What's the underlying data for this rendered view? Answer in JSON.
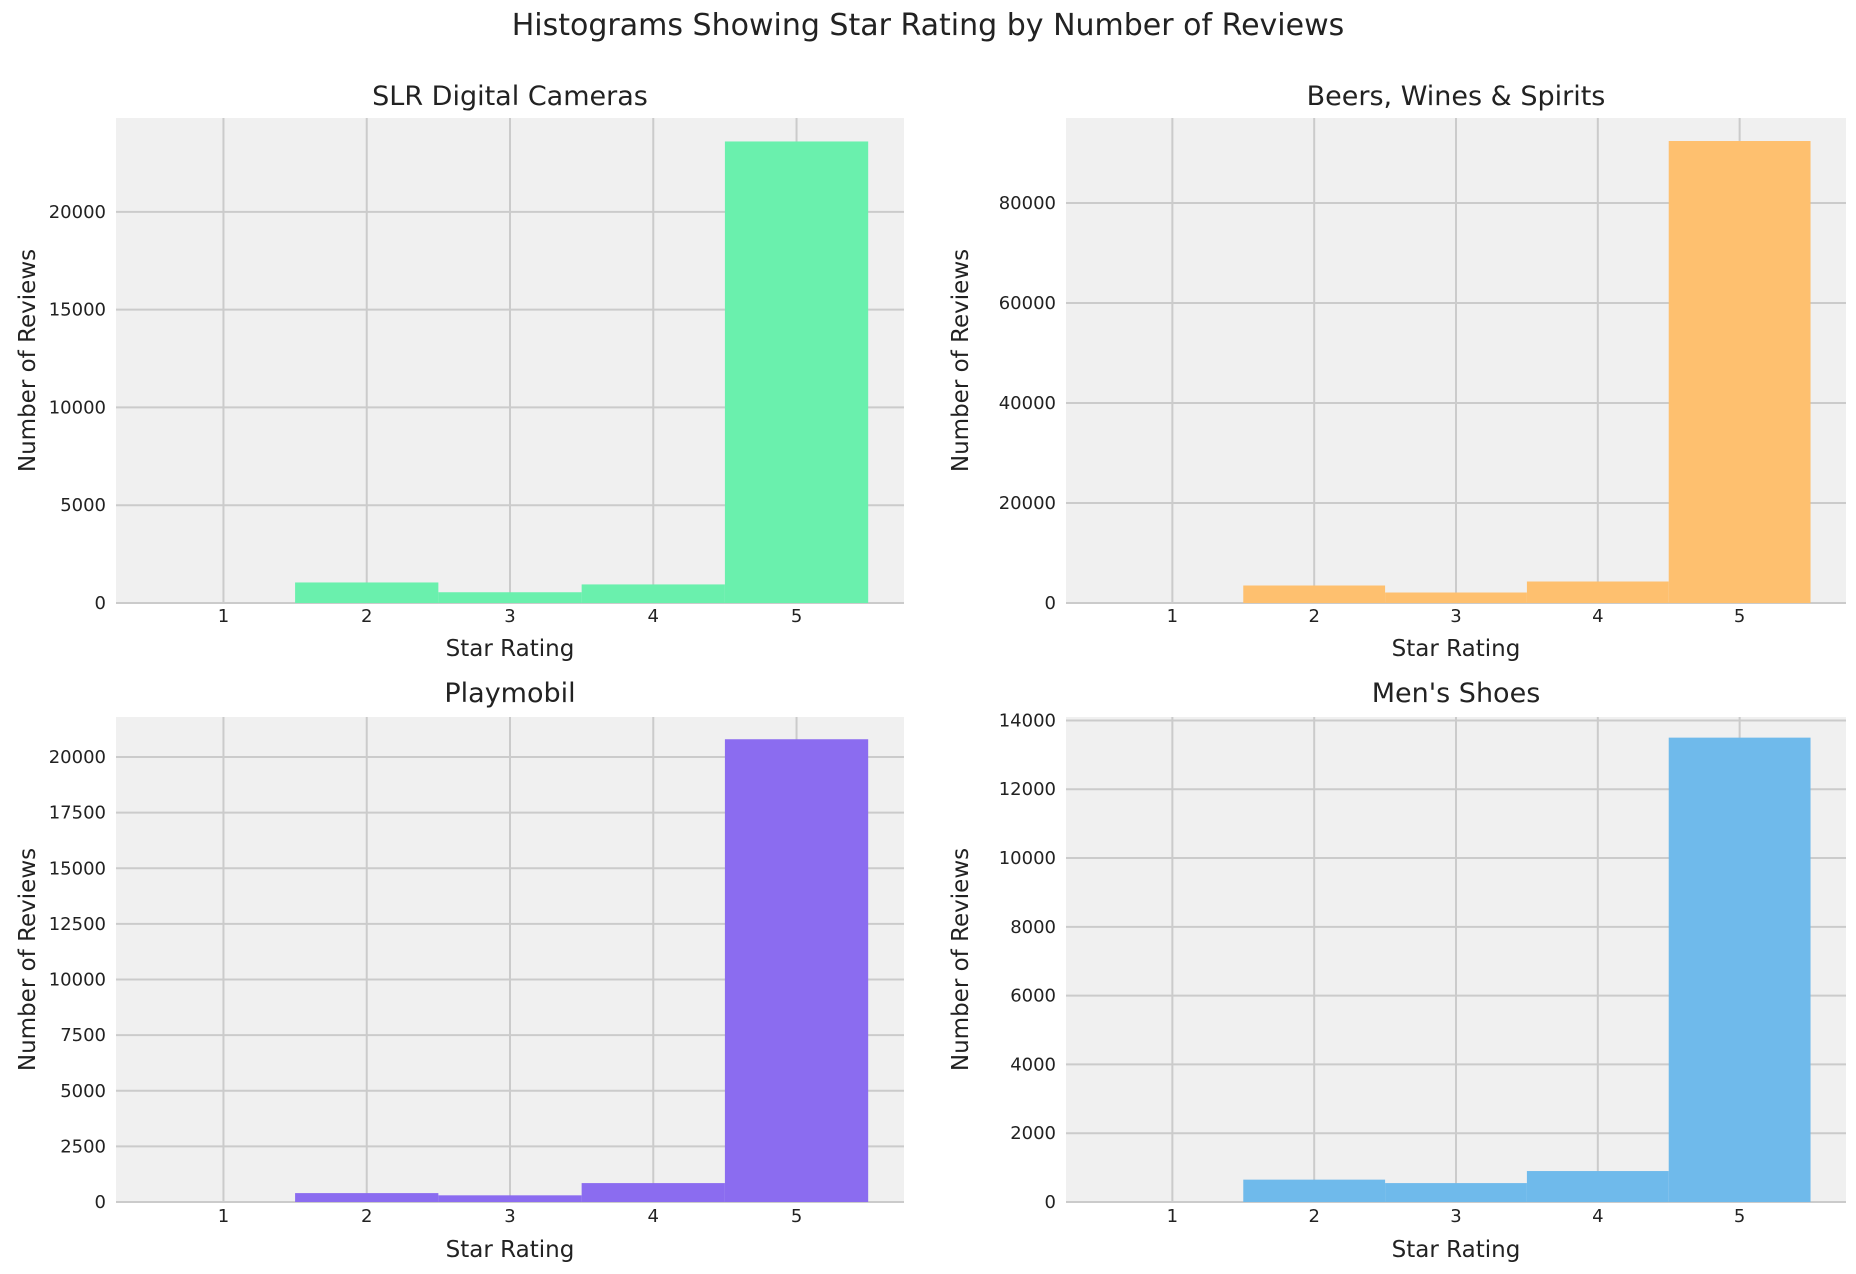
{
  "suptitle": "Histograms Showing Star Rating by Number of Reviews",
  "chart_data": [
    {
      "type": "bar",
      "title": "SLR Digital Cameras",
      "xlabel": "Star Rating",
      "ylabel": "Number of Reviews",
      "categories": [
        1,
        2,
        3,
        4,
        5
      ],
      "values": [
        0,
        1050,
        550,
        950,
        23600
      ],
      "ylim": [
        0,
        24800
      ],
      "yticks": [
        0,
        5000,
        10000,
        15000,
        20000
      ],
      "color": "#6af0ad",
      "grid": true
    },
    {
      "type": "bar",
      "title": "Beers, Wines & Spirits",
      "xlabel": "Star Rating",
      "ylabel": "Number of Reviews",
      "categories": [
        1,
        2,
        3,
        4,
        5
      ],
      "values": [
        0,
        3500,
        2100,
        4300,
        92400
      ],
      "ylim": [
        0,
        97000
      ],
      "yticks": [
        0,
        20000,
        40000,
        60000,
        80000
      ],
      "color": "#fec06f",
      "grid": true
    },
    {
      "type": "bar",
      "title": "Playmobil",
      "xlabel": "Star Rating",
      "ylabel": "Number of Reviews",
      "categories": [
        1,
        2,
        3,
        4,
        5
      ],
      "values": [
        0,
        400,
        300,
        850,
        20800
      ],
      "ylim": [
        0,
        21800
      ],
      "yticks": [
        0,
        2500,
        5000,
        7500,
        10000,
        12500,
        15000,
        17500,
        20000
      ],
      "color": "#8b6cf0",
      "grid": true
    },
    {
      "type": "bar",
      "title": "Men's Shoes",
      "xlabel": "Star Rating",
      "ylabel": "Number of Reviews",
      "categories": [
        1,
        2,
        3,
        4,
        5
      ],
      "values": [
        0,
        650,
        550,
        900,
        13500
      ],
      "ylim": [
        0,
        14100
      ],
      "yticks": [
        0,
        2000,
        4000,
        6000,
        8000,
        10000,
        12000,
        14000
      ],
      "color": "#6fbaeb",
      "grid": true
    }
  ]
}
